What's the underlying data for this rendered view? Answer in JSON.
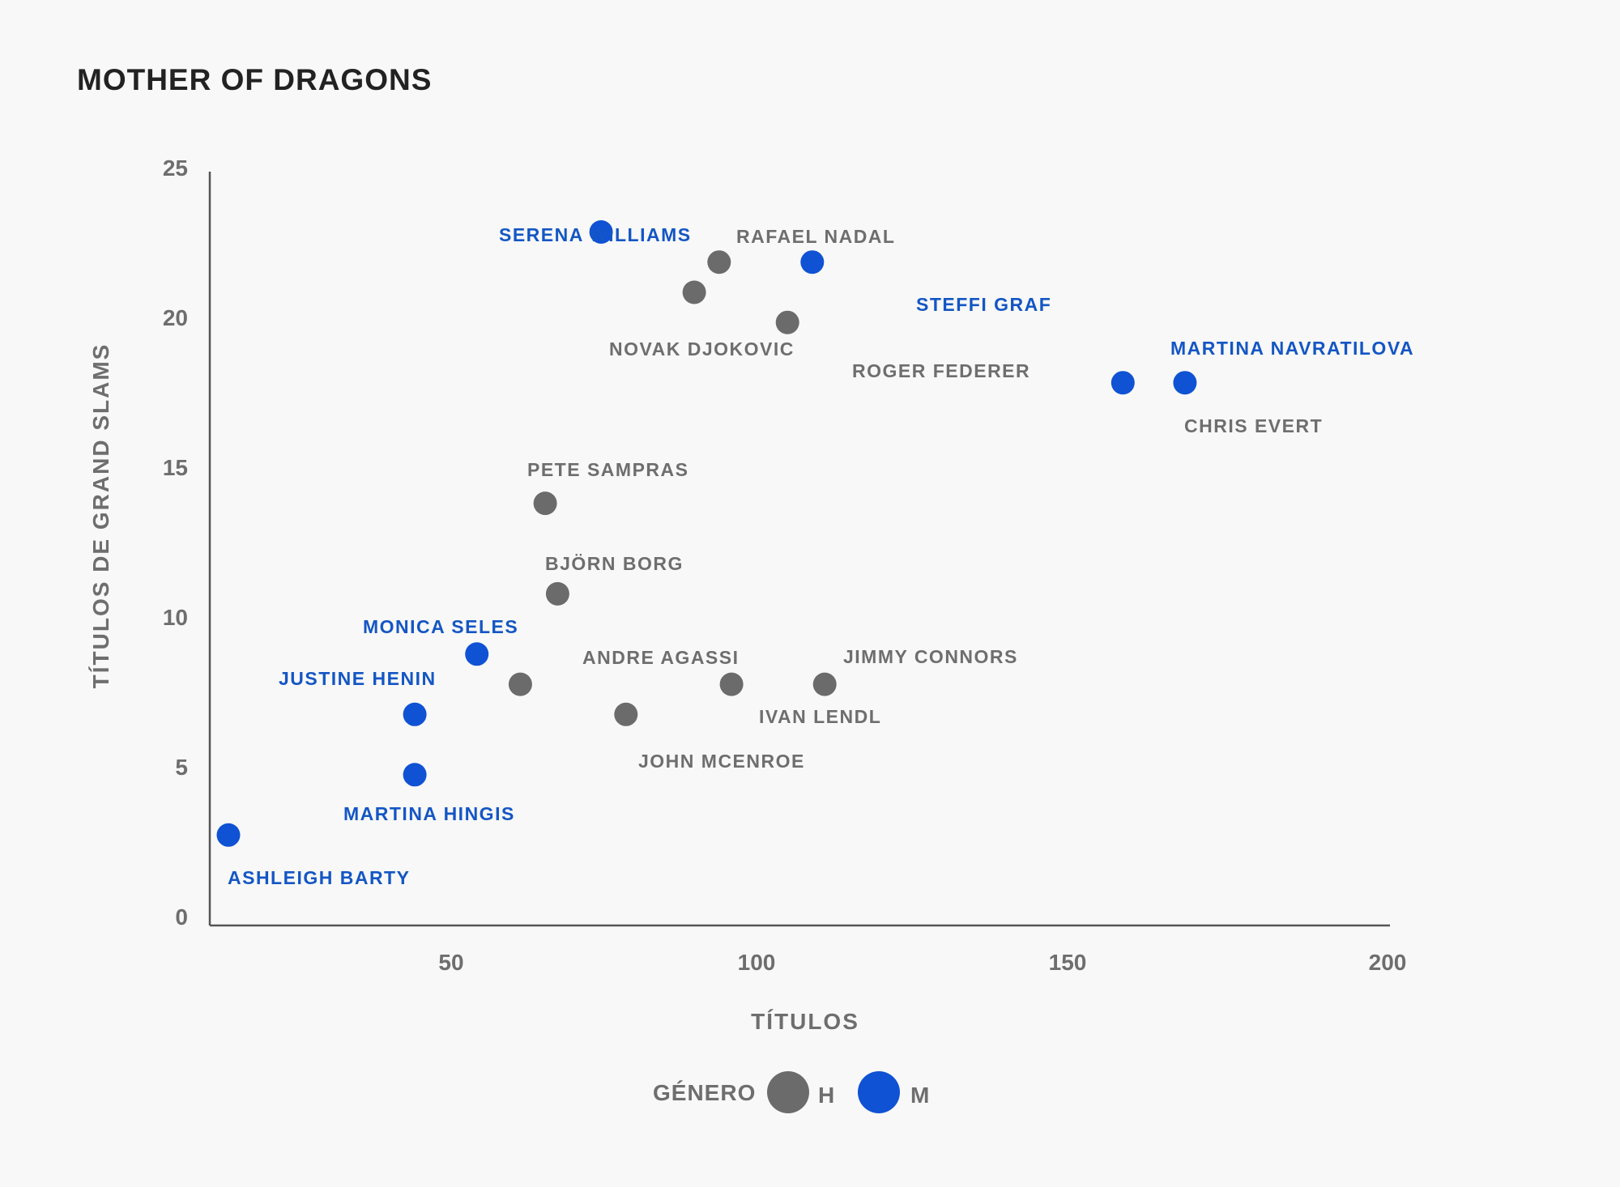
{
  "chart_data": {
    "type": "scatter",
    "title": "MOTHER OF DRAGONS",
    "xlabel": "TÍTULOS",
    "ylabel": "TÍTULOS DE GRAND SLAMS",
    "xlim": [
      10,
      200
    ],
    "ylim": [
      0,
      25
    ],
    "xticks": [
      "50",
      "100",
      "150",
      "200"
    ],
    "yticks": [
      "0",
      "5",
      "10",
      "15",
      "20",
      "25"
    ],
    "legend": {
      "title": "GÉNERO",
      "items": [
        {
          "key": "H",
          "label": "H"
        },
        {
          "key": "M",
          "label": "M"
        }
      ],
      "placement": "bottom-center"
    },
    "colors": {
      "H": "#6b6b6b",
      "M": "#0f52d4",
      "label_H": "#6e6e6e",
      "label_M": "#1456c4",
      "axis": "#555555"
    },
    "points": [
      {
        "name": "SERENA WILLIAMS",
        "genero": "M",
        "x": 73,
        "y": 23
      },
      {
        "name": "RAFAEL NADAL",
        "genero": "H",
        "x": 92,
        "y": 22
      },
      {
        "name": "NOVAK DJOKOVIC",
        "genero": "H",
        "x": 88,
        "y": 21
      },
      {
        "name": "ROGER FEDERER",
        "genero": "H",
        "x": 103,
        "y": 20
      },
      {
        "name": "STEFFI GRAF",
        "genero": "M",
        "x": 107,
        "y": 22
      },
      {
        "name": "JIMMY CONNORS",
        "genero": "H",
        "x": 109,
        "y": 8
      },
      {
        "name": "CHRIS EVERT",
        "genero": "M",
        "x": 157,
        "y": 18
      },
      {
        "name": "MARTINA NAVRATILOVA",
        "genero": "M",
        "x": 167,
        "y": 18
      },
      {
        "name": "PETE SAMPRAS",
        "genero": "H",
        "x": 64,
        "y": 14
      },
      {
        "name": "BJÖRN BORG",
        "genero": "H",
        "x": 66,
        "y": 11
      },
      {
        "name": "MONICA SELES",
        "genero": "M",
        "x": 53,
        "y": 9
      },
      {
        "name": "ANDRE AGASSI",
        "genero": "H",
        "x": 60,
        "y": 8
      },
      {
        "name": "IVAN LENDL",
        "genero": "H",
        "x": 94,
        "y": 8
      },
      {
        "name": "JOHN MCENROE",
        "genero": "H",
        "x": 77,
        "y": 7
      },
      {
        "name": "JUSTINE HENIN",
        "genero": "M",
        "x": 43,
        "y": 7
      },
      {
        "name": "MARTINA HINGIS",
        "genero": "M",
        "x": 43,
        "y": 5
      },
      {
        "name": "ASHLEIGH BARTY",
        "genero": "M",
        "x": 13,
        "y": 3
      }
    ]
  }
}
